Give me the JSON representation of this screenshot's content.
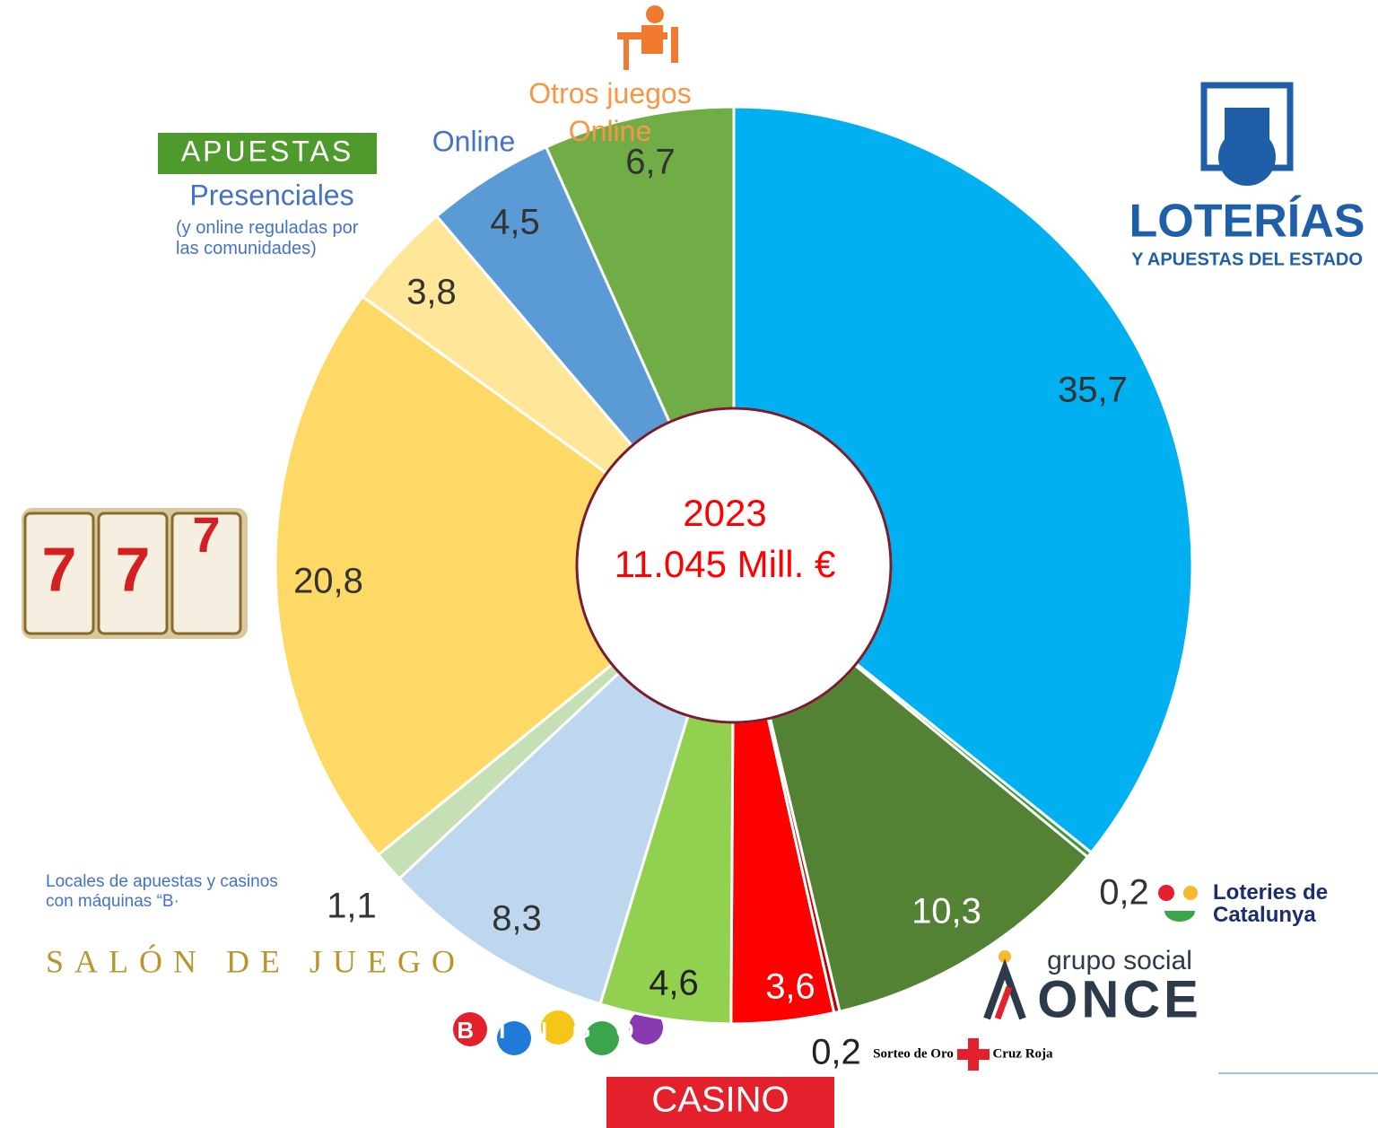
{
  "chart_data": {
    "type": "donut",
    "title": "2023",
    "subtitle": "11.045 Mill. €",
    "categories": [
      "LOTERÍAS",
      "Loteries de Catalunya",
      "ONCE",
      "Cruz Roja",
      "CASINO",
      "BINGO",
      "SALÓN DE JUEGO",
      "Locales de apuestas y casinos con máquinas “B·",
      null,
      "Presenciales",
      "Online",
      "Otros juegos Online"
    ],
    "values": [
      35.7,
      0.2,
      10.3,
      0.2,
      3.6,
      4.6,
      8.3,
      1.1,
      20.8,
      3.8,
      4.5,
      6.7
    ],
    "value_labels": [
      "35,7",
      "0,2",
      "10,3",
      "0,2",
      "3,6",
      "4,6",
      "8,3",
      "1,1",
      "20,8",
      "3,8",
      "4,5",
      "6,7"
    ],
    "colors": [
      "#00b0f0",
      "#3a9a3a",
      "#548235",
      "#c00000",
      "#ff0000",
      "#92d050",
      "#bdd7ee",
      "#c5e0b4",
      "#ffd966",
      "#ffe699",
      "#5b9bd5",
      "#70ad47"
    ],
    "annotations": [
      "Y APUESTAS DEL ESTADO",
      "grupo social",
      "Sorteo de Oro",
      "APUESTAS",
      "(y online reguladas por las comunidades)"
    ]
  }
}
